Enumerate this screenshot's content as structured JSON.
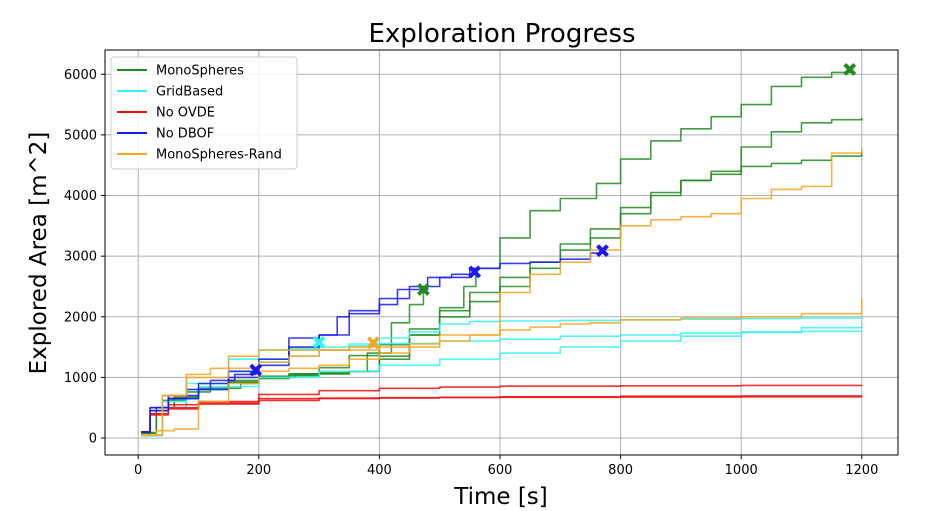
{
  "chart_data": {
    "type": "line",
    "title": "Exploration Progress",
    "xlabel": "Time [s]",
    "ylabel": "Explored Area [m^2]",
    "xlim": [
      -55,
      1260
    ],
    "ylim": [
      -280,
      6400
    ],
    "xticks": [
      0,
      200,
      400,
      600,
      800,
      1000,
      1200
    ],
    "yticks": [
      0,
      1000,
      2000,
      3000,
      4000,
      5000,
      6000
    ],
    "grid": true,
    "legend_position": "top-left",
    "legend": [
      {
        "label": "MonoSpheres",
        "color": "#228b22"
      },
      {
        "label": "GridBased",
        "color": "#33f5f5"
      },
      {
        "label": "No OVDE",
        "color": "#ee1111"
      },
      {
        "label": "No DBOF",
        "color": "#1a1aee"
      },
      {
        "label": "MonoSpheres-Rand",
        "color": "#f5a623"
      }
    ],
    "series": [
      {
        "group": "MonoSpheres",
        "color": "#228b22",
        "end_marker": [
          1180,
          6080
        ],
        "points": [
          [
            5,
            80
          ],
          [
            20,
            400
          ],
          [
            40,
            620
          ],
          [
            80,
            760
          ],
          [
            120,
            820
          ],
          [
            170,
            900
          ],
          [
            200,
            1000
          ],
          [
            260,
            1060
          ],
          [
            300,
            1160
          ],
          [
            350,
            1360
          ],
          [
            400,
            1540
          ],
          [
            450,
            1800
          ],
          [
            500,
            2150
          ],
          [
            540,
            2500
          ],
          [
            560,
            2800
          ],
          [
            600,
            3300
          ],
          [
            650,
            3750
          ],
          [
            700,
            3950
          ],
          [
            760,
            4200
          ],
          [
            800,
            4600
          ],
          [
            850,
            4900
          ],
          [
            900,
            5100
          ],
          [
            950,
            5300
          ],
          [
            1000,
            5500
          ],
          [
            1050,
            5800
          ],
          [
            1100,
            5950
          ],
          [
            1150,
            6030
          ],
          [
            1180,
            6080
          ]
        ]
      },
      {
        "group": "MonoSpheres",
        "color": "#228b22",
        "end_marker": null,
        "points": [
          [
            5,
            90
          ],
          [
            30,
            500
          ],
          [
            60,
            680
          ],
          [
            100,
            820
          ],
          [
            150,
            920
          ],
          [
            200,
            980
          ],
          [
            250,
            1030
          ],
          [
            300,
            1060
          ],
          [
            350,
            1100
          ],
          [
            400,
            1350
          ],
          [
            450,
            1700
          ],
          [
            500,
            2000
          ],
          [
            550,
            2250
          ],
          [
            600,
            2500
          ],
          [
            650,
            2800
          ],
          [
            700,
            3200
          ],
          [
            750,
            3450
          ],
          [
            800,
            3800
          ],
          [
            850,
            4050
          ],
          [
            900,
            4250
          ],
          [
            950,
            4350
          ],
          [
            1000,
            4480
          ],
          [
            1050,
            4530
          ],
          [
            1100,
            4580
          ],
          [
            1150,
            4650
          ],
          [
            1200,
            4720
          ]
        ]
      },
      {
        "group": "MonoSpheres",
        "color": "#228b22",
        "end_marker": null,
        "points": [
          [
            5,
            80
          ],
          [
            30,
            500
          ],
          [
            60,
            650
          ],
          [
            100,
            800
          ],
          [
            150,
            950
          ],
          [
            200,
            1020
          ],
          [
            250,
            1060
          ],
          [
            300,
            1080
          ],
          [
            350,
            1100
          ],
          [
            400,
            1300
          ],
          [
            450,
            1700
          ],
          [
            500,
            2100
          ],
          [
            550,
            2400
          ],
          [
            600,
            2650
          ],
          [
            650,
            2900
          ],
          [
            700,
            3100
          ],
          [
            750,
            3300
          ],
          [
            800,
            3700
          ],
          [
            850,
            4000
          ],
          [
            900,
            4250
          ],
          [
            950,
            4400
          ],
          [
            1000,
            4800
          ],
          [
            1050,
            5050
          ],
          [
            1100,
            5200
          ],
          [
            1150,
            5250
          ],
          [
            1200,
            5280
          ]
        ]
      },
      {
        "group": "MonoSpheres",
        "color": "#228b22",
        "end_marker": [
          473,
          2450
        ],
        "points": [
          [
            5,
            100
          ],
          [
            20,
            450
          ],
          [
            50,
            650
          ],
          [
            100,
            800
          ],
          [
            150,
            920
          ],
          [
            200,
            1000
          ],
          [
            250,
            1040
          ],
          [
            300,
            1060
          ],
          [
            350,
            1100
          ],
          [
            380,
            1400
          ],
          [
            420,
            1900
          ],
          [
            450,
            2200
          ],
          [
            473,
            2450
          ]
        ]
      },
      {
        "group": "GridBased",
        "color": "#33f5f5",
        "end_marker": null,
        "points": [
          [
            5,
            40
          ],
          [
            40,
            500
          ],
          [
            80,
            800
          ],
          [
            150,
            1100
          ],
          [
            200,
            1250
          ],
          [
            250,
            1350
          ],
          [
            300,
            1450
          ],
          [
            350,
            1550
          ],
          [
            400,
            1650
          ],
          [
            450,
            1750
          ],
          [
            500,
            1880
          ],
          [
            550,
            1920
          ],
          [
            600,
            1930
          ],
          [
            700,
            1940
          ],
          [
            800,
            1950
          ],
          [
            900,
            1960
          ],
          [
            1000,
            1970
          ],
          [
            1100,
            1980
          ],
          [
            1200,
            1990
          ]
        ]
      },
      {
        "group": "GridBased",
        "color": "#33f5f5",
        "end_marker": null,
        "points": [
          [
            5,
            40
          ],
          [
            40,
            600
          ],
          [
            80,
            900
          ],
          [
            150,
            1300
          ],
          [
            200,
            1450
          ],
          [
            250,
            1480
          ],
          [
            300,
            1500
          ],
          [
            350,
            1520
          ],
          [
            400,
            1560
          ],
          [
            500,
            1600
          ],
          [
            600,
            1630
          ],
          [
            700,
            1680
          ],
          [
            800,
            1700
          ],
          [
            900,
            1730
          ],
          [
            1000,
            1740
          ],
          [
            1100,
            1760
          ],
          [
            1200,
            1770
          ]
        ]
      },
      {
        "group": "GridBased",
        "color": "#33f5f5",
        "end_marker": null,
        "points": [
          [
            5,
            40
          ],
          [
            40,
            500
          ],
          [
            100,
            850
          ],
          [
            200,
            1000
          ],
          [
            300,
            1100
          ],
          [
            400,
            1200
          ],
          [
            500,
            1300
          ],
          [
            600,
            1400
          ],
          [
            700,
            1500
          ],
          [
            800,
            1600
          ],
          [
            900,
            1680
          ],
          [
            1000,
            1750
          ],
          [
            1100,
            1820
          ],
          [
            1200,
            1880
          ]
        ]
      },
      {
        "group": "GridBased",
        "color": "#33f5f5",
        "end_marker": [
          300,
          1580
        ],
        "points": [
          [
            5,
            40
          ],
          [
            40,
            500
          ],
          [
            80,
            800
          ],
          [
            150,
            1100
          ],
          [
            200,
            1300
          ],
          [
            250,
            1450
          ],
          [
            300,
            1580
          ]
        ]
      },
      {
        "group": "No OVDE",
        "color": "#ee1111",
        "end_marker": null,
        "points": [
          [
            5,
            100
          ],
          [
            20,
            450
          ],
          [
            50,
            550
          ],
          [
            100,
            600
          ],
          [
            200,
            720
          ],
          [
            300,
            780
          ],
          [
            400,
            820
          ],
          [
            500,
            840
          ],
          [
            600,
            855
          ],
          [
            800,
            862
          ],
          [
            1000,
            868
          ],
          [
            1200,
            870
          ]
        ]
      },
      {
        "group": "No OVDE",
        "color": "#ee1111",
        "end_marker": null,
        "points": [
          [
            5,
            100
          ],
          [
            20,
            400
          ],
          [
            50,
            500
          ],
          [
            100,
            580
          ],
          [
            200,
            650
          ],
          [
            300,
            660
          ],
          [
            400,
            665
          ],
          [
            500,
            672
          ],
          [
            600,
            680
          ],
          [
            800,
            690
          ],
          [
            1000,
            695
          ],
          [
            1200,
            700
          ]
        ]
      },
      {
        "group": "No OVDE",
        "color": "#ee1111",
        "end_marker": null,
        "points": [
          [
            5,
            100
          ],
          [
            20,
            380
          ],
          [
            50,
            480
          ],
          [
            100,
            560
          ],
          [
            200,
            620
          ],
          [
            300,
            650
          ],
          [
            400,
            660
          ],
          [
            500,
            668
          ],
          [
            600,
            672
          ],
          [
            800,
            675
          ],
          [
            1000,
            680
          ],
          [
            1200,
            690
          ]
        ]
      },
      {
        "group": "No DBOF",
        "color": "#1a1aee",
        "end_marker": [
          195,
          1120
        ],
        "points": [
          [
            5,
            100
          ],
          [
            20,
            450
          ],
          [
            50,
            650
          ],
          [
            80,
            800
          ],
          [
            120,
            950
          ],
          [
            160,
            1050
          ],
          [
            195,
            1120
          ]
        ]
      },
      {
        "group": "No DBOF",
        "color": "#1a1aee",
        "end_marker": [
          558,
          2740
        ],
        "points": [
          [
            5,
            100
          ],
          [
            20,
            500
          ],
          [
            50,
            650
          ],
          [
            100,
            800
          ],
          [
            150,
            1000
          ],
          [
            200,
            1200
          ],
          [
            250,
            1500
          ],
          [
            300,
            1700
          ],
          [
            330,
            2000
          ],
          [
            350,
            2100
          ],
          [
            400,
            2200
          ],
          [
            430,
            2450
          ],
          [
            480,
            2650
          ],
          [
            520,
            2700
          ],
          [
            558,
            2740
          ]
        ]
      },
      {
        "group": "No DBOF",
        "color": "#1a1aee",
        "end_marker": [
          770,
          3090
        ],
        "points": [
          [
            5,
            100
          ],
          [
            20,
            500
          ],
          [
            50,
            700
          ],
          [
            100,
            900
          ],
          [
            150,
            1100
          ],
          [
            200,
            1300
          ],
          [
            250,
            1650
          ],
          [
            300,
            1700
          ],
          [
            350,
            2050
          ],
          [
            400,
            2300
          ],
          [
            450,
            2500
          ],
          [
            500,
            2650
          ],
          [
            550,
            2800
          ],
          [
            600,
            2880
          ],
          [
            650,
            2900
          ],
          [
            700,
            2950
          ],
          [
            750,
            3050
          ],
          [
            770,
            3090
          ]
        ]
      },
      {
        "group": "MonoSpheres-Rand",
        "color": "#f5a623",
        "end_marker": null,
        "points": [
          [
            5,
            50
          ],
          [
            30,
            120
          ],
          [
            60,
            150
          ],
          [
            100,
            600
          ],
          [
            150,
            900
          ],
          [
            200,
            1100
          ],
          [
            250,
            1150
          ],
          [
            300,
            1200
          ],
          [
            350,
            1300
          ],
          [
            400,
            1400
          ],
          [
            450,
            1500
          ],
          [
            500,
            1600
          ],
          [
            550,
            1700
          ],
          [
            600,
            1780
          ],
          [
            650,
            1830
          ],
          [
            700,
            1880
          ],
          [
            750,
            1900
          ],
          [
            800,
            1950
          ],
          [
            900,
            1980
          ],
          [
            1000,
            2000
          ],
          [
            1100,
            2050
          ],
          [
            1200,
            2300
          ]
        ]
      },
      {
        "group": "MonoSpheres-Rand",
        "color": "#f5a623",
        "end_marker": null,
        "points": [
          [
            5,
            50
          ],
          [
            40,
            700
          ],
          [
            80,
            1000
          ],
          [
            150,
            1350
          ],
          [
            200,
            1450
          ],
          [
            300,
            1450
          ],
          [
            400,
            1500
          ],
          [
            450,
            1550
          ],
          [
            500,
            1700
          ],
          [
            600,
            2400
          ],
          [
            650,
            2700
          ],
          [
            700,
            2900
          ],
          [
            750,
            3100
          ],
          [
            800,
            3500
          ],
          [
            850,
            3600
          ],
          [
            900,
            3650
          ],
          [
            950,
            3700
          ],
          [
            1000,
            3950
          ],
          [
            1050,
            4100
          ],
          [
            1100,
            4150
          ],
          [
            1150,
            4700
          ],
          [
            1200,
            4780
          ]
        ]
      },
      {
        "group": "MonoSpheres-Rand",
        "color": "#f5a623",
        "end_marker": [
          390,
          1570
        ],
        "points": [
          [
            5,
            50
          ],
          [
            40,
            700
          ],
          [
            80,
            1050
          ],
          [
            120,
            1150
          ],
          [
            200,
            1250
          ],
          [
            250,
            1350
          ],
          [
            300,
            1450
          ],
          [
            350,
            1500
          ],
          [
            390,
            1570
          ]
        ]
      }
    ]
  }
}
